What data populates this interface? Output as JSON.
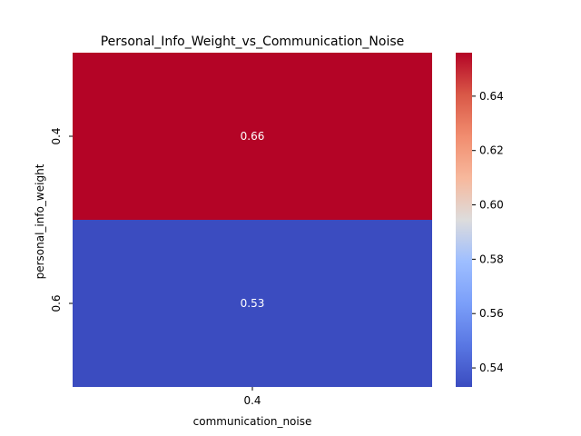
{
  "chart_data": {
    "type": "heatmap",
    "title": "Personal_Info_Weight_vs_Communication_Noise",
    "xlabel": "communication_noise",
    "ylabel": "personal_info_weight",
    "x_categories": [
      "0.4"
    ],
    "y_categories": [
      "0.4",
      "0.6"
    ],
    "values": [
      [
        0.656
      ],
      [
        0.533
      ]
    ],
    "cell_labels": [
      [
        "0.66"
      ],
      [
        "0.53"
      ]
    ],
    "colormap": "coolwarm",
    "vmin": 0.533,
    "vmax": 0.656,
    "colorbar": {
      "ticks": [
        0.54,
        0.56,
        0.58,
        0.6,
        0.62,
        0.64
      ],
      "tick_labels": [
        "0.54",
        "0.56",
        "0.58",
        "0.60",
        "0.62",
        "0.64"
      ]
    }
  }
}
